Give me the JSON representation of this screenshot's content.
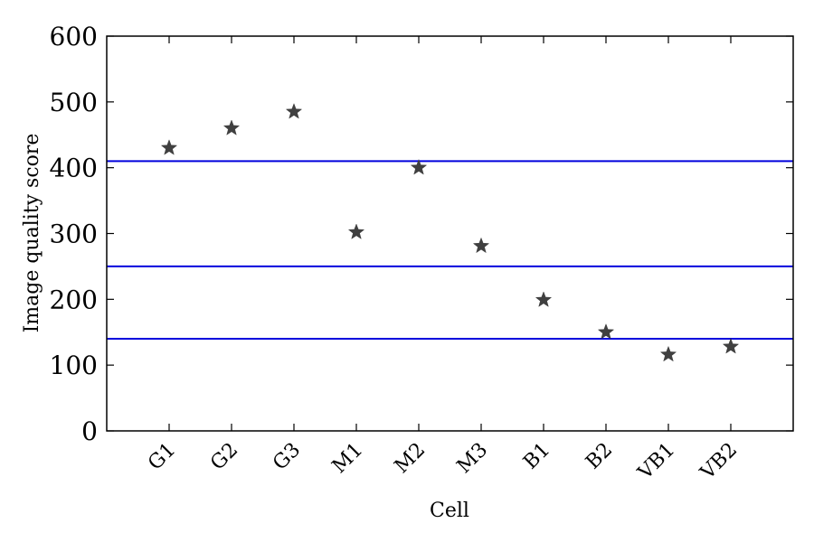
{
  "chart_data": {
    "type": "scatter",
    "xlabel": "Cell",
    "ylabel": "Image quality score",
    "ylim": [
      0,
      600
    ],
    "yticks": [
      0,
      100,
      200,
      300,
      400,
      500,
      600
    ],
    "categories": [
      "G1",
      "G2",
      "G3",
      "M1",
      "M2",
      "M3",
      "B1",
      "B2",
      "VB1",
      "VB2"
    ],
    "values": [
      430,
      460,
      485,
      302,
      400,
      281,
      199,
      150,
      116,
      128
    ],
    "marker": "star",
    "marker_color": "#404040",
    "reference_lines": [
      410,
      250,
      140
    ],
    "reference_line_color": "#0000dd",
    "grid": false,
    "legend": "none"
  }
}
